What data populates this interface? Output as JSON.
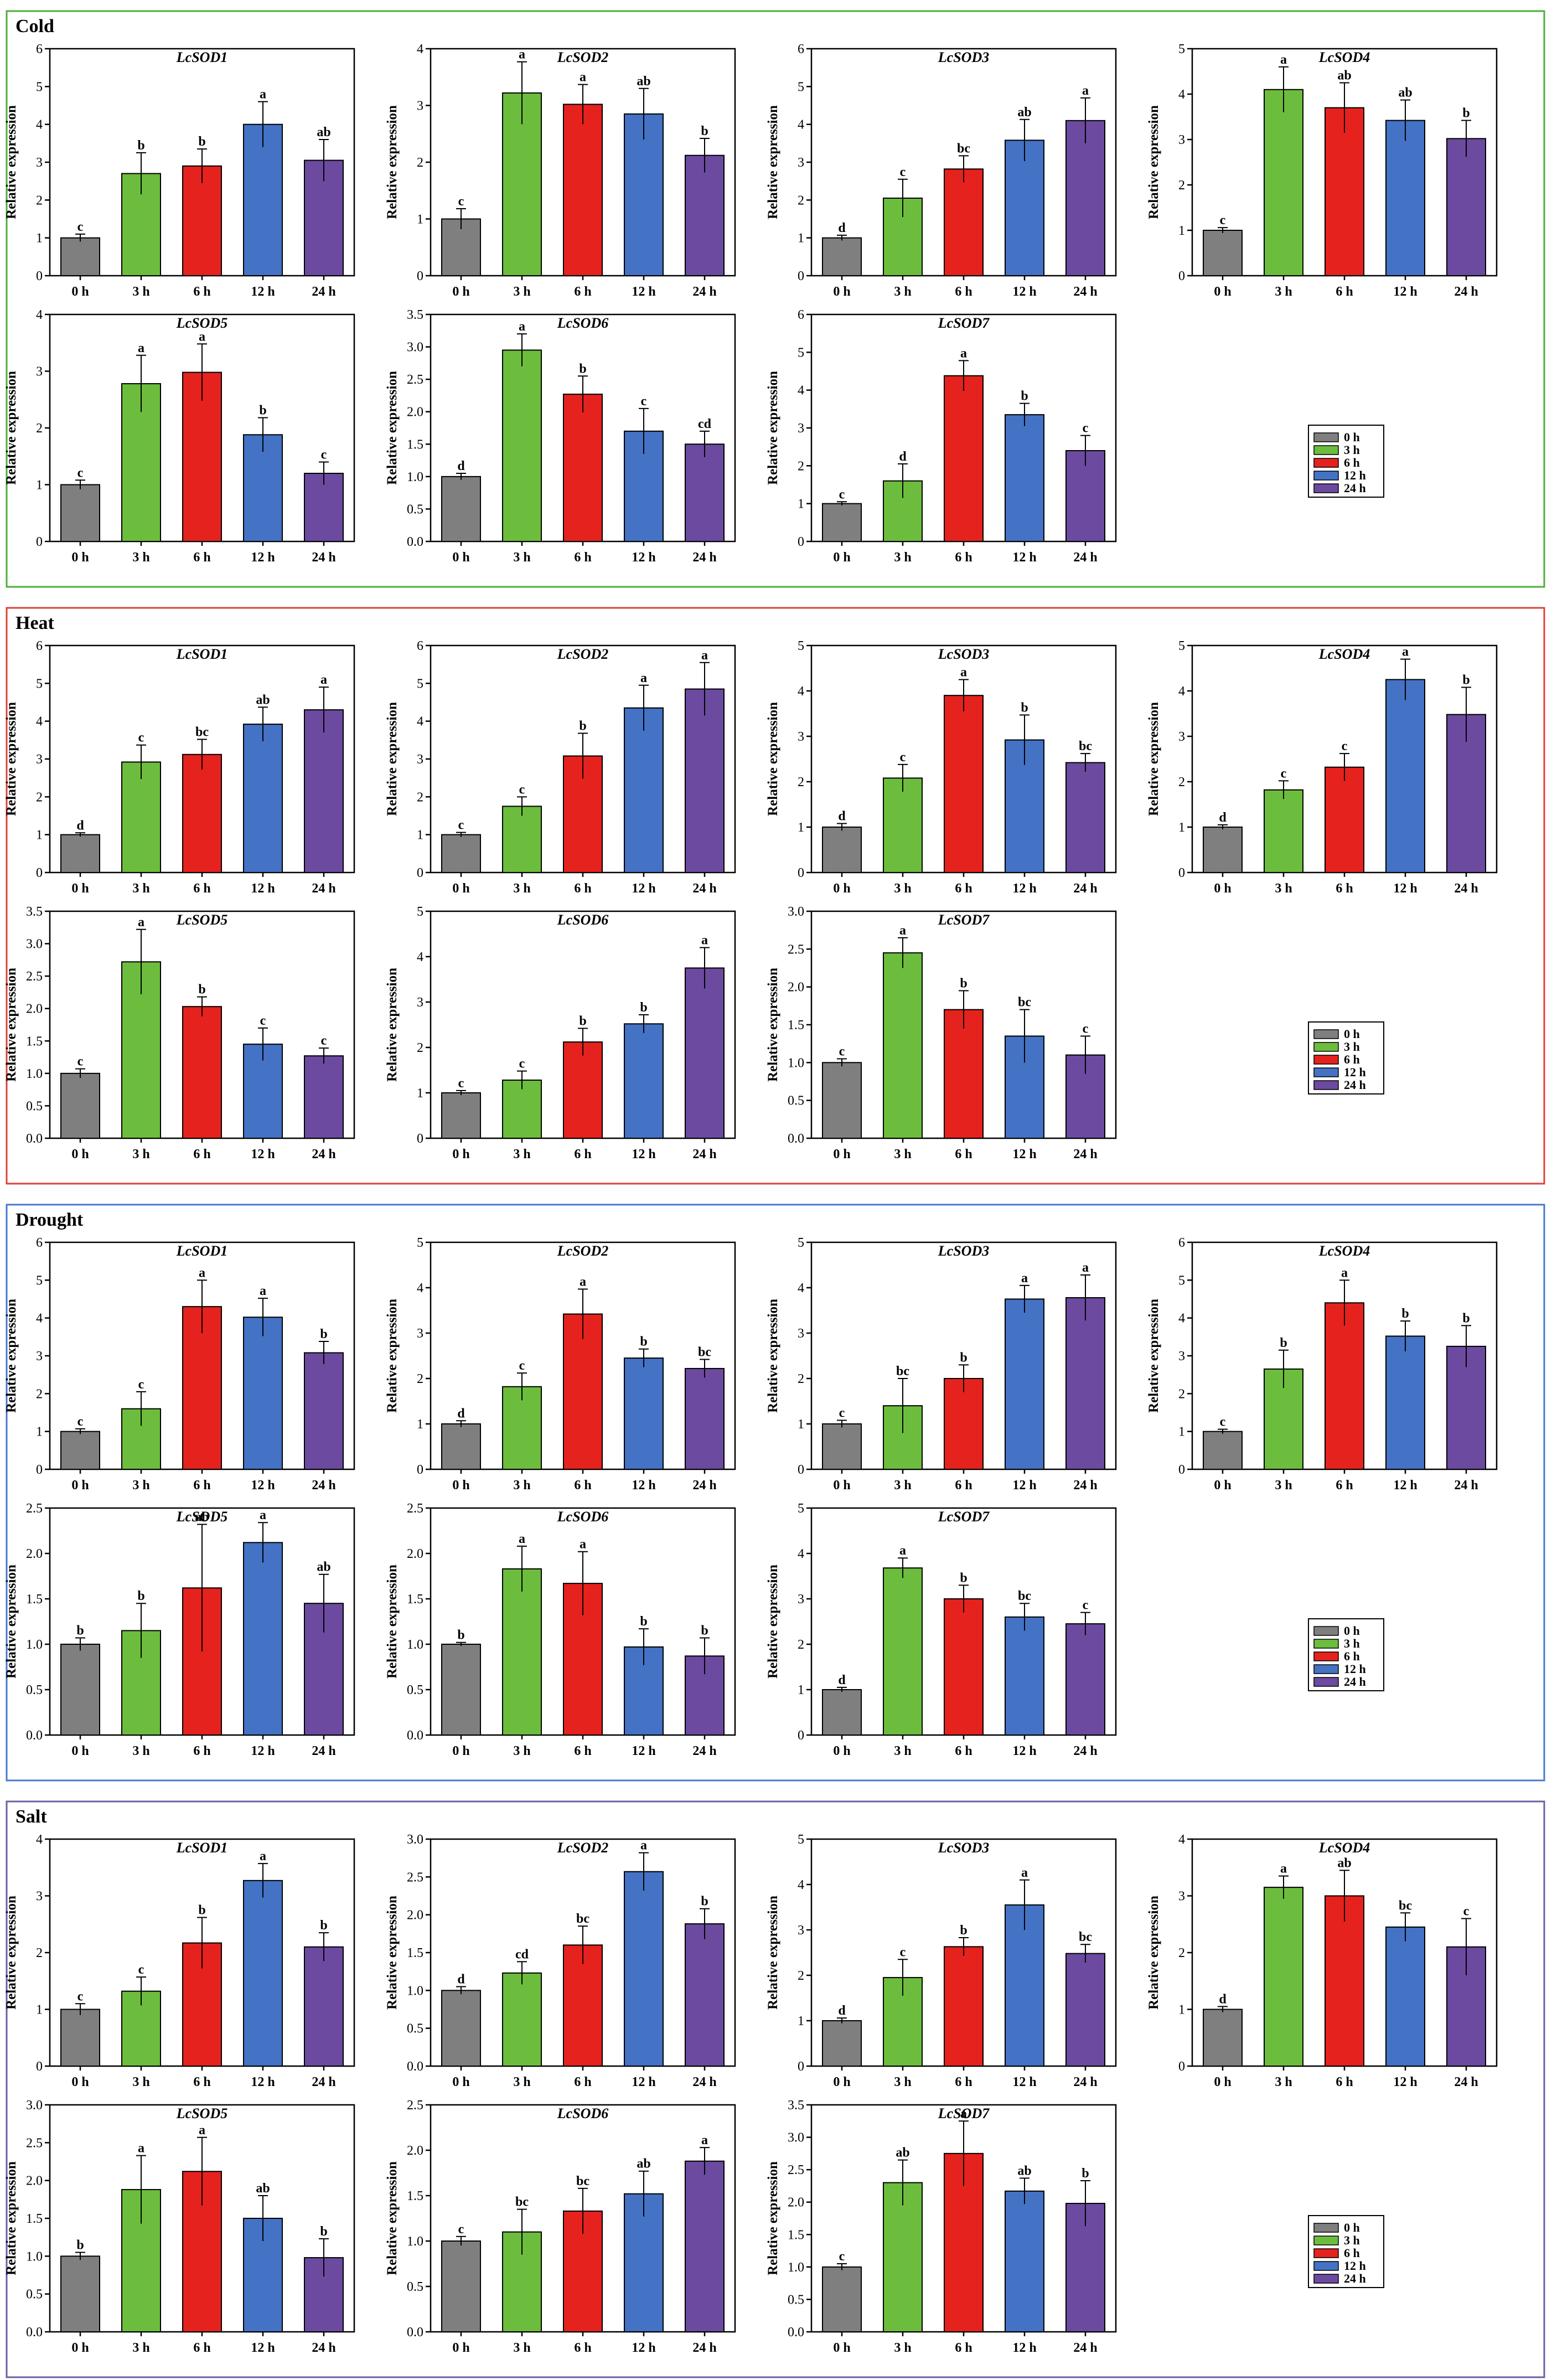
{
  "timepoints": [
    "0 h",
    "3 h",
    "6 h",
    "12 h",
    "24 h"
  ],
  "colors": {
    "0 h": "#7f7f7f",
    "3 h": "#6cbd3d",
    "6 h": "#e5221d",
    "12 h": "#4472c4",
    "24 h": "#6c4aa0",
    "cold_border": "#4caf3a",
    "heat_border": "#e0403a",
    "drought_border": "#4a78d0",
    "salt_border": "#6d5ea8"
  },
  "ylabel": "Relative expression",
  "legend": {
    "entries": [
      "0 h",
      "3 h",
      "6 h",
      "12 h",
      "24 h"
    ]
  },
  "chart_data": [
    {
      "panel": "Cold",
      "type": "bar",
      "charts": [
        {
          "gene": "LcSOD1",
          "ylim": [
            0,
            6
          ],
          "ticks": [
            "0",
            "1",
            "2",
            "3",
            "4",
            "5",
            "6"
          ],
          "values": [
            1.0,
            2.7,
            2.9,
            4.0,
            3.05
          ],
          "errors": [
            0.1,
            0.55,
            0.45,
            0.6,
            0.55
          ],
          "letters": [
            "c",
            "b",
            "b",
            "a",
            "ab"
          ]
        },
        {
          "gene": "LcSOD2",
          "ylim": [
            0,
            4
          ],
          "ticks": [
            "0",
            "1",
            "2",
            "3",
            "4"
          ],
          "values": [
            1.0,
            3.22,
            3.02,
            2.85,
            2.12
          ],
          "errors": [
            0.18,
            0.55,
            0.35,
            0.45,
            0.3
          ],
          "letters": [
            "c",
            "a",
            "a",
            "ab",
            "b"
          ]
        },
        {
          "gene": "LcSOD3",
          "ylim": [
            0,
            6
          ],
          "ticks": [
            "0",
            "1",
            "2",
            "3",
            "4",
            "5",
            "6"
          ],
          "values": [
            1.0,
            2.05,
            2.82,
            3.58,
            4.1
          ],
          "errors": [
            0.07,
            0.5,
            0.35,
            0.55,
            0.6
          ],
          "letters": [
            "d",
            "c",
            "bc",
            "ab",
            "a"
          ]
        },
        {
          "gene": "LcSOD4",
          "ylim": [
            0,
            5
          ],
          "ticks": [
            "0",
            "1",
            "2",
            "3",
            "4",
            "5"
          ],
          "values": [
            1.0,
            4.1,
            3.7,
            3.42,
            3.02
          ],
          "errors": [
            0.06,
            0.5,
            0.55,
            0.45,
            0.4
          ],
          "letters": [
            "c",
            "a",
            "ab",
            "ab",
            "b"
          ]
        },
        {
          "gene": "LcSOD5",
          "ylim": [
            0,
            4
          ],
          "ticks": [
            "0",
            "1",
            "2",
            "3",
            "4"
          ],
          "values": [
            1.0,
            2.78,
            2.98,
            1.88,
            1.2
          ],
          "errors": [
            0.08,
            0.5,
            0.5,
            0.3,
            0.2
          ],
          "letters": [
            "c",
            "a",
            "a",
            "b",
            "c"
          ]
        },
        {
          "gene": "LcSOD6",
          "ylim": [
            0,
            3.5
          ],
          "ticks": [
            "0.0",
            "0.5",
            "1.0",
            "1.5",
            "2.0",
            "2.5",
            "3.0",
            "3.5"
          ],
          "values": [
            1.0,
            2.95,
            2.27,
            1.7,
            1.5
          ],
          "errors": [
            0.05,
            0.25,
            0.28,
            0.35,
            0.2
          ],
          "letters": [
            "d",
            "a",
            "b",
            "c",
            "cd"
          ]
        },
        {
          "gene": "LcSOD7",
          "ylim": [
            0,
            6
          ],
          "ticks": [
            "0",
            "1",
            "2",
            "3",
            "4",
            "5",
            "6"
          ],
          "values": [
            1.0,
            1.6,
            4.38,
            3.35,
            2.4
          ],
          "errors": [
            0.05,
            0.45,
            0.4,
            0.3,
            0.4
          ],
          "letters": [
            "c",
            "d",
            "a",
            "b",
            "c"
          ]
        }
      ]
    },
    {
      "panel": "Heat",
      "type": "bar",
      "charts": [
        {
          "gene": "LcSOD1",
          "ylim": [
            0,
            6
          ],
          "ticks": [
            "0",
            "1",
            "2",
            "3",
            "4",
            "5",
            "6"
          ],
          "values": [
            1.0,
            2.92,
            3.12,
            3.92,
            4.3
          ],
          "errors": [
            0.05,
            0.45,
            0.4,
            0.45,
            0.6
          ],
          "letters": [
            "d",
            "c",
            "bc",
            "ab",
            "a"
          ]
        },
        {
          "gene": "LcSOD2",
          "ylim": [
            0,
            6
          ],
          "ticks": [
            "0",
            "1",
            "2",
            "3",
            "4",
            "5",
            "6"
          ],
          "values": [
            1.0,
            1.75,
            3.08,
            4.35,
            4.85
          ],
          "errors": [
            0.06,
            0.25,
            0.6,
            0.6,
            0.7
          ],
          "letters": [
            "c",
            "c",
            "b",
            "a",
            "a"
          ]
        },
        {
          "gene": "LcSOD3",
          "ylim": [
            0,
            5
          ],
          "ticks": [
            "0",
            "1",
            "2",
            "3",
            "4",
            "5"
          ],
          "values": [
            1.0,
            2.08,
            3.9,
            2.92,
            2.42
          ],
          "errors": [
            0.08,
            0.3,
            0.35,
            0.55,
            0.2
          ],
          "letters": [
            "d",
            "c",
            "a",
            "b",
            "bc"
          ]
        },
        {
          "gene": "LcSOD4",
          "ylim": [
            0,
            5
          ],
          "ticks": [
            "0",
            "1",
            "2",
            "3",
            "4",
            "5"
          ],
          "values": [
            1.0,
            1.82,
            2.32,
            4.25,
            3.48
          ],
          "errors": [
            0.05,
            0.2,
            0.3,
            0.45,
            0.6
          ],
          "letters": [
            "d",
            "c",
            "c",
            "a",
            "b"
          ]
        },
        {
          "gene": "LcSOD5",
          "ylim": [
            0,
            3.5
          ],
          "ticks": [
            "0.0",
            "0.5",
            "1.0",
            "1.5",
            "2.0",
            "2.5",
            "3.0",
            "3.5"
          ],
          "values": [
            1.0,
            2.72,
            2.03,
            1.45,
            1.27
          ],
          "errors": [
            0.07,
            0.5,
            0.15,
            0.25,
            0.12
          ],
          "letters": [
            "c",
            "a",
            "b",
            "c",
            "c"
          ]
        },
        {
          "gene": "LcSOD6",
          "ylim": [
            0,
            5
          ],
          "ticks": [
            "0",
            "1",
            "2",
            "3",
            "4",
            "5"
          ],
          "values": [
            1.0,
            1.28,
            2.12,
            2.52,
            3.75
          ],
          "errors": [
            0.05,
            0.2,
            0.3,
            0.2,
            0.45
          ],
          "letters": [
            "c",
            "c",
            "b",
            "b",
            "a"
          ]
        },
        {
          "gene": "LcSOD7",
          "ylim": [
            0,
            3.0
          ],
          "ticks": [
            "0.0",
            "0.5",
            "1.0",
            "1.5",
            "2.0",
            "2.5",
            "3.0"
          ],
          "values": [
            1.0,
            2.45,
            1.7,
            1.35,
            1.1
          ],
          "errors": [
            0.05,
            0.2,
            0.25,
            0.35,
            0.25
          ],
          "letters": [
            "c",
            "a",
            "b",
            "bc",
            "c"
          ]
        }
      ]
    },
    {
      "panel": "Drought",
      "type": "bar",
      "charts": [
        {
          "gene": "LcSOD1",
          "ylim": [
            0,
            6
          ],
          "ticks": [
            "0",
            "1",
            "2",
            "3",
            "4",
            "5",
            "6"
          ],
          "values": [
            1.0,
            1.6,
            4.3,
            4.02,
            3.08
          ],
          "errors": [
            0.07,
            0.45,
            0.7,
            0.5,
            0.3
          ],
          "letters": [
            "c",
            "c",
            "a",
            "a",
            "b"
          ]
        },
        {
          "gene": "LcSOD2",
          "ylim": [
            0,
            5
          ],
          "ticks": [
            "0",
            "1",
            "2",
            "3",
            "4",
            "5"
          ],
          "values": [
            1.0,
            1.82,
            3.42,
            2.45,
            2.22
          ],
          "errors": [
            0.07,
            0.3,
            0.55,
            0.2,
            0.2
          ],
          "letters": [
            "d",
            "c",
            "a",
            "b",
            "bc"
          ]
        },
        {
          "gene": "LcSOD3",
          "ylim": [
            0,
            5
          ],
          "ticks": [
            "0",
            "1",
            "2",
            "3",
            "4",
            "5"
          ],
          "values": [
            1.0,
            1.4,
            2.0,
            3.75,
            3.78
          ],
          "errors": [
            0.08,
            0.6,
            0.3,
            0.3,
            0.5
          ],
          "letters": [
            "c",
            "bc",
            "b",
            "a",
            "a"
          ]
        },
        {
          "gene": "LcSOD4",
          "ylim": [
            0,
            6
          ],
          "ticks": [
            "0",
            "1",
            "2",
            "3",
            "4",
            "5",
            "6"
          ],
          "values": [
            1.0,
            2.65,
            4.4,
            3.52,
            3.25
          ],
          "errors": [
            0.06,
            0.5,
            0.6,
            0.4,
            0.55
          ],
          "letters": [
            "c",
            "b",
            "a",
            "b",
            "b"
          ]
        },
        {
          "gene": "LcSOD5",
          "ylim": [
            0,
            2.5
          ],
          "ticks": [
            "0.0",
            "0.5",
            "1.0",
            "1.5",
            "2.0",
            "2.5"
          ],
          "values": [
            1.0,
            1.15,
            1.62,
            2.12,
            1.45
          ],
          "errors": [
            0.07,
            0.3,
            0.7,
            0.22,
            0.32
          ],
          "letters": [
            "b",
            "b",
            "ab",
            "a",
            "ab"
          ]
        },
        {
          "gene": "LcSOD6",
          "ylim": [
            0,
            2.5
          ],
          "ticks": [
            "0.0",
            "0.5",
            "1.0",
            "1.5",
            "2.0",
            "2.5"
          ],
          "values": [
            1.0,
            1.83,
            1.67,
            0.97,
            0.87
          ],
          "errors": [
            0.02,
            0.25,
            0.35,
            0.2,
            0.2
          ],
          "letters": [
            "b",
            "a",
            "a",
            "b",
            "b"
          ]
        },
        {
          "gene": "LcSOD7",
          "ylim": [
            0,
            5
          ],
          "ticks": [
            "0",
            "1",
            "2",
            "3",
            "4",
            "5"
          ],
          "values": [
            1.0,
            3.68,
            3.0,
            2.6,
            2.45
          ],
          "errors": [
            0.05,
            0.22,
            0.3,
            0.3,
            0.25
          ],
          "letters": [
            "d",
            "a",
            "b",
            "bc",
            "c"
          ]
        }
      ]
    },
    {
      "panel": "Salt",
      "type": "bar",
      "charts": [
        {
          "gene": "LcSOD1",
          "ylim": [
            0,
            4
          ],
          "ticks": [
            "0",
            "1",
            "2",
            "3",
            "4"
          ],
          "values": [
            1.0,
            1.32,
            2.17,
            3.27,
            2.1
          ],
          "errors": [
            0.1,
            0.25,
            0.45,
            0.3,
            0.25
          ],
          "letters": [
            "c",
            "c",
            "b",
            "a",
            "b"
          ]
        },
        {
          "gene": "LcSOD2",
          "ylim": [
            0,
            3.0
          ],
          "ticks": [
            "0.0",
            "0.5",
            "1.0",
            "1.5",
            "2.0",
            "2.5",
            "3.0"
          ],
          "values": [
            1.0,
            1.23,
            1.6,
            2.57,
            1.88
          ],
          "errors": [
            0.05,
            0.15,
            0.25,
            0.25,
            0.2
          ],
          "letters": [
            "d",
            "cd",
            "bc",
            "a",
            "b"
          ]
        },
        {
          "gene": "LcSOD3",
          "ylim": [
            0,
            5
          ],
          "ticks": [
            "0",
            "1",
            "2",
            "3",
            "4",
            "5"
          ],
          "values": [
            1.0,
            1.95,
            2.63,
            3.55,
            2.48
          ],
          "errors": [
            0.06,
            0.4,
            0.2,
            0.55,
            0.2
          ],
          "letters": [
            "d",
            "c",
            "b",
            "a",
            "bc"
          ]
        },
        {
          "gene": "LcSOD4",
          "ylim": [
            0,
            4
          ],
          "ticks": [
            "0",
            "1",
            "2",
            "3",
            "4"
          ],
          "values": [
            1.0,
            3.15,
            3.0,
            2.45,
            2.1
          ],
          "errors": [
            0.05,
            0.2,
            0.45,
            0.25,
            0.5
          ],
          "letters": [
            "d",
            "a",
            "ab",
            "bc",
            "c"
          ]
        },
        {
          "gene": "LcSOD5",
          "ylim": [
            0,
            3.0
          ],
          "ticks": [
            "0.0",
            "0.5",
            "1.0",
            "1.5",
            "2.0",
            "2.5",
            "3.0"
          ],
          "values": [
            1.0,
            1.88,
            2.12,
            1.5,
            0.98
          ],
          "errors": [
            0.05,
            0.45,
            0.45,
            0.3,
            0.25
          ],
          "letters": [
            "b",
            "a",
            "a",
            "ab",
            "b"
          ]
        },
        {
          "gene": "LcSOD6",
          "ylim": [
            0,
            2.5
          ],
          "ticks": [
            "0.0",
            "0.5",
            "1.0",
            "1.5",
            "2.0",
            "2.5"
          ],
          "values": [
            1.0,
            1.1,
            1.33,
            1.52,
            1.88
          ],
          "errors": [
            0.05,
            0.25,
            0.25,
            0.25,
            0.15
          ],
          "letters": [
            "c",
            "bc",
            "bc",
            "ab",
            "a"
          ]
        },
        {
          "gene": "LcSOD7",
          "ylim": [
            0,
            3.5
          ],
          "ticks": [
            "0.0",
            "0.5",
            "1.0",
            "1.5",
            "2.0",
            "2.5",
            "3.0",
            "3.5"
          ],
          "values": [
            1.0,
            2.3,
            2.75,
            2.17,
            1.98
          ],
          "errors": [
            0.05,
            0.35,
            0.5,
            0.2,
            0.35
          ],
          "letters": [
            "c",
            "ab",
            "a",
            "ab",
            "b"
          ]
        }
      ]
    }
  ]
}
